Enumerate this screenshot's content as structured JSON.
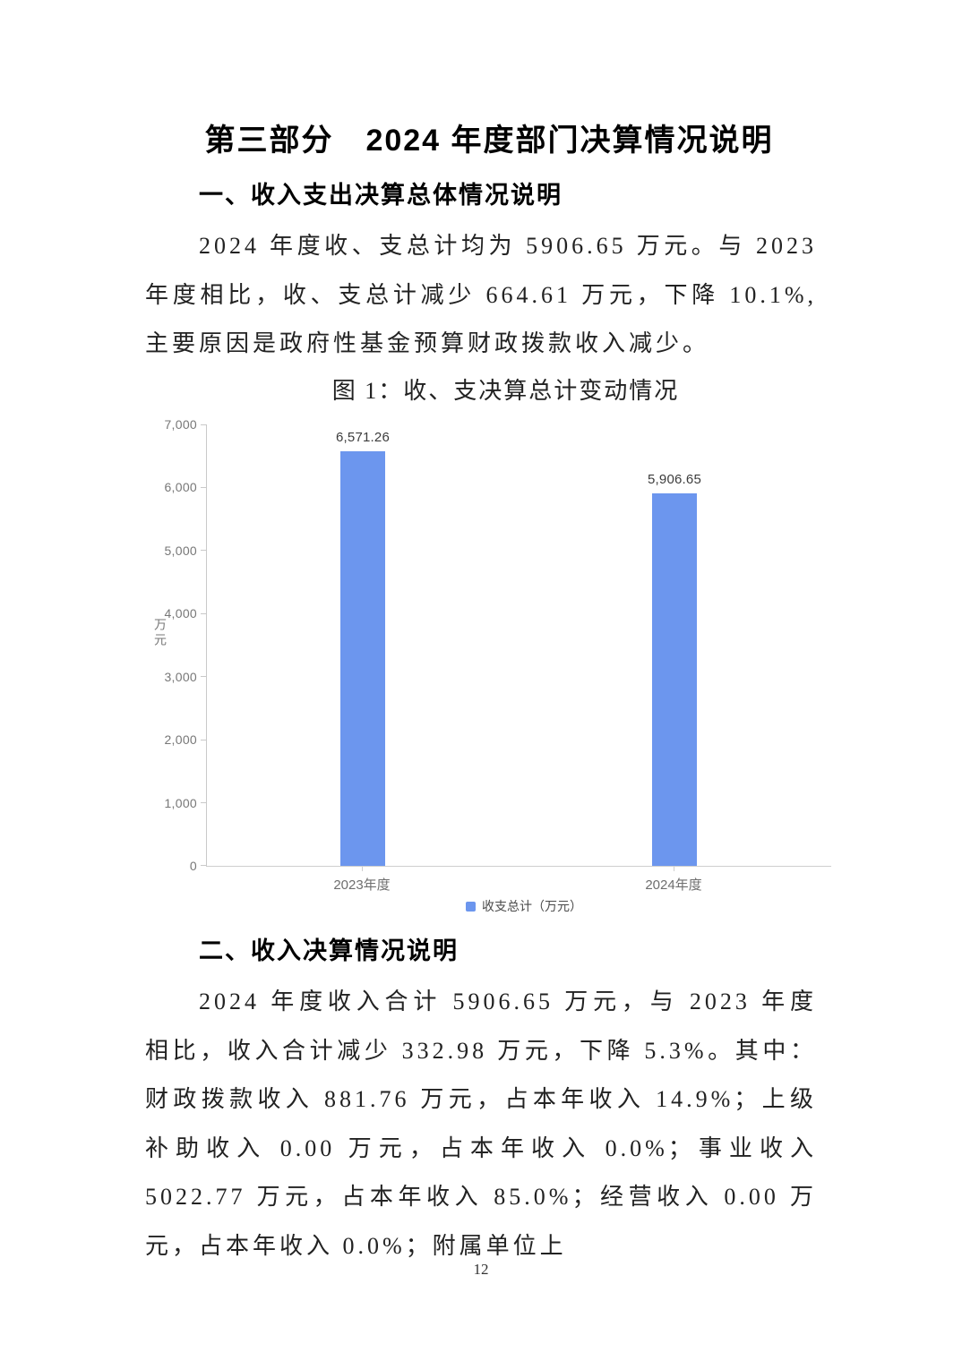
{
  "document": {
    "title": "第三部分　2024 年度部门决算情况说明",
    "page_number": "12"
  },
  "section_overview": {
    "heading": "一、收入支出决算总体情况说明",
    "paragraph": "2024 年度收、支总计均为 5906.65 万元。与 2023 年度相比，收、支总计减少 664.61 万元，下降 10.1%,主要原因是政府性基金预算财政拨款收入减少。"
  },
  "figure1": {
    "caption": "图 1：收、支决算总计变动情况"
  },
  "chart_data": {
    "type": "bar",
    "title": "图 1：收、支决算总计变动情况",
    "categories": [
      "2023年度",
      "2024年度"
    ],
    "values": [
      6571.26,
      5906.65
    ],
    "value_labels": [
      "6,571.26",
      "5,906.65"
    ],
    "xlabel": "",
    "ylabel": "万元",
    "ylim": [
      0,
      7000
    ],
    "yticks": [
      "7,000",
      "6,000",
      "5,000",
      "4,000",
      "3,000",
      "2,000",
      "1,000",
      "0"
    ],
    "grid": false,
    "legend": "收支总计（万元）",
    "legend_position": "bottom",
    "bar_color": "#6C96EE",
    "axis_color": "#c9c9c9",
    "tick_label_color": "#777777"
  },
  "section_income": {
    "heading": "二、收入决算情况说明",
    "paragraph": "2024 年度收入合计 5906.65 万元，与 2023 年度相比，收入合计减少 332.98 万元，下降 5.3%。其中：财政拨款收入 881.76 万元，占本年收入 14.9%；上级补助收入 0.00 万元，占本年收入 0.0%；事业收入 5022.77 万元，占本年收入 85.0%；经营收入 0.00 万元，占本年收入 0.0%；附属单位上"
  }
}
